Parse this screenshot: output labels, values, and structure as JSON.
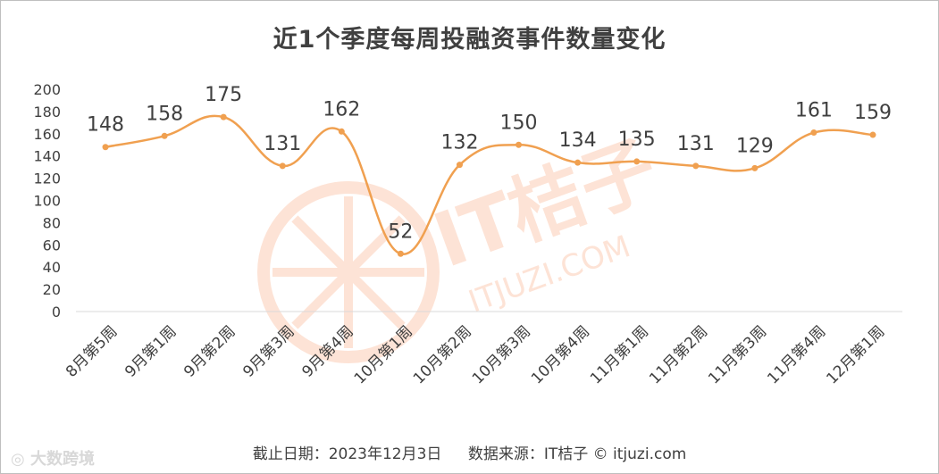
{
  "footer": {
    "date_text": "截止日期：2023年12月3日",
    "source_text": "数据来源：IT桔子 © itjuzi.com"
  },
  "brand": {
    "logo_text": "大数跨境"
  },
  "watermark": {
    "cn": "IT桔子",
    "en": "ITJUZI.COM"
  },
  "colors": {
    "line": "#f0a050",
    "watermark": "#fde3d6",
    "axis": "#d9d9d9",
    "text": "#404040"
  },
  "chart_data": {
    "type": "line",
    "title": "近1个季度每周投融资事件数量变化",
    "smooth": true,
    "grid": false,
    "categories": [
      "8月第5周",
      "9月第1周",
      "9月第2周",
      "9月第3周",
      "9月第4周",
      "10月第1周",
      "10月第2周",
      "10月第3周",
      "10月第4周",
      "11月第1周",
      "11月第2周",
      "11月第3周",
      "11月第4周",
      "12月第1周"
    ],
    "values": [
      148,
      158,
      175,
      131,
      162,
      52,
      132,
      150,
      134,
      135,
      131,
      129,
      161,
      159
    ],
    "yticks": [
      0,
      20,
      40,
      60,
      80,
      100,
      120,
      140,
      160,
      180,
      200
    ],
    "ylim": [
      0,
      200
    ]
  }
}
